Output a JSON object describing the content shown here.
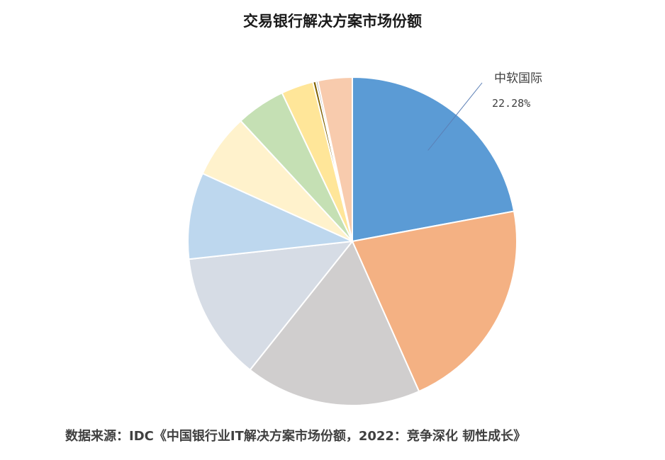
{
  "chart_data": {
    "type": "pie",
    "title": "交易银行解决方案市场份额",
    "start_angle_deg": 0,
    "direction": "clockwise",
    "slices": [
      {
        "label": "中软国际",
        "value": 22.28,
        "value_label": "22.28%",
        "color": "#5B9BD5",
        "show_label": true
      },
      {
        "label": "",
        "value": 21.5,
        "color": "#F4B183",
        "show_label": false
      },
      {
        "label": "",
        "value": 17.5,
        "color": "#D0CECE",
        "show_label": false
      },
      {
        "label": "",
        "value": 12.7,
        "color": "#D6DCE5",
        "show_label": false
      },
      {
        "label": "",
        "value": 8.6,
        "color": "#BDD7EE",
        "show_label": false
      },
      {
        "label": "",
        "value": 6.4,
        "color": "#FFF2CC",
        "show_label": false
      },
      {
        "label": "",
        "value": 4.9,
        "color": "#C5E0B4",
        "show_label": false
      },
      {
        "label": "",
        "value": 3.2,
        "color": "#FFE699",
        "show_label": false
      },
      {
        "label": "",
        "value": 0.3,
        "color": "#7F6000",
        "show_label": false
      },
      {
        "label": "",
        "value": 0.2,
        "color": "#A9A9A9",
        "show_label": false
      },
      {
        "label": "",
        "value": 3.4,
        "color": "#F8CBAD",
        "show_label": false
      }
    ],
    "legend": "none"
  },
  "footer": {
    "source": "数据来源：IDC《中国银行业IT解决方案市场份额，2022：竞争深化 韧性成长》"
  }
}
